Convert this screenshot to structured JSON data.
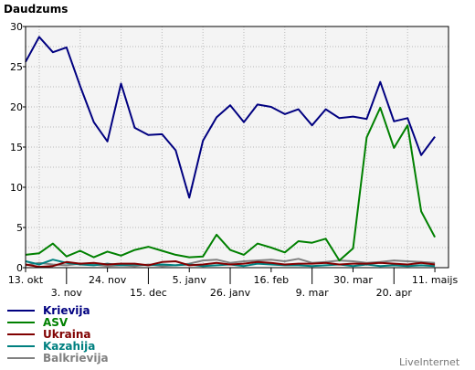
{
  "chart_data": {
    "type": "line",
    "ylabel": "Daudzums",
    "ylim": [
      0,
      30
    ],
    "yticks": [
      0,
      5,
      10,
      15,
      20,
      25,
      30
    ],
    "grid": true,
    "legend_position": "bottom-left",
    "x_count": 32,
    "xticks_row1": [
      {
        "label": "13. okt",
        "i": 0
      },
      {
        "label": "24. nov",
        "i": 6
      },
      {
        "label": "5. janv",
        "i": 12
      },
      {
        "label": "16. feb",
        "i": 18
      },
      {
        "label": "30. mar",
        "i": 24
      },
      {
        "label": "11. maijs",
        "i": 30
      }
    ],
    "xticks_row2": [
      {
        "label": "3. nov",
        "i": 3
      },
      {
        "label": "15. dec",
        "i": 9
      },
      {
        "label": "26. janv",
        "i": 15
      },
      {
        "label": "9. mar",
        "i": 21
      },
      {
        "label": "20. apr",
        "i": 27
      }
    ],
    "series": [
      {
        "name": "Krievija",
        "color": "#000080",
        "values": [
          25.6,
          28.7,
          26.8,
          27.4,
          22.6,
          18.1,
          15.7,
          22.9,
          17.4,
          16.5,
          16.6,
          14.6,
          8.7,
          15.8,
          18.7,
          20.2,
          18.1,
          20.3,
          20.0,
          19.1,
          19.7,
          17.7,
          19.7,
          18.6,
          18.8,
          18.5,
          23.1,
          18.2,
          18.6,
          14.0,
          16.3
        ]
      },
      {
        "name": "ASV",
        "color": "#008000",
        "values": [
          1.6,
          1.8,
          3.0,
          1.4,
          2.1,
          1.3,
          2.0,
          1.5,
          2.2,
          2.6,
          2.1,
          1.6,
          1.3,
          1.4,
          4.1,
          2.2,
          1.6,
          3.0,
          2.5,
          1.9,
          3.3,
          3.1,
          3.6,
          0.9,
          2.4,
          16.2,
          19.9,
          14.9,
          17.7,
          7.0,
          3.8
        ]
      },
      {
        "name": "Ukraina",
        "color": "#800000",
        "values": [
          0.4,
          0.1,
          0.2,
          0.7,
          0.5,
          0.6,
          0.4,
          0.5,
          0.5,
          0.3,
          0.7,
          0.8,
          0.3,
          0.4,
          0.6,
          0.4,
          0.5,
          0.7,
          0.6,
          0.4,
          0.5,
          0.5,
          0.6,
          0.4,
          0.5,
          0.5,
          0.6,
          0.5,
          0.4,
          0.6,
          0.4
        ]
      },
      {
        "name": "Kazahija",
        "color": "#008080",
        "values": [
          0.8,
          0.4,
          1.0,
          0.6,
          0.4,
          0.3,
          0.5,
          0.3,
          0.4,
          0.3,
          0.4,
          0.3,
          0.4,
          0.2,
          0.3,
          0.4,
          0.2,
          0.5,
          0.4,
          0.3,
          0.3,
          0.2,
          0.3,
          0.4,
          0.2,
          0.4,
          0.2,
          0.3,
          0.2,
          0.3,
          0.2
        ]
      },
      {
        "name": "Balkrievija",
        "color": "#808080",
        "values": [
          0.3,
          0.6,
          0.4,
          0.3,
          0.5,
          0.4,
          0.2,
          0.3,
          0.2,
          0.4,
          0.2,
          0.3,
          0.5,
          0.9,
          1.0,
          0.6,
          0.8,
          0.9,
          1.0,
          0.8,
          1.1,
          0.6,
          0.7,
          0.9,
          0.8,
          0.6,
          0.7,
          0.9,
          0.8,
          0.7,
          0.6
        ]
      }
    ]
  },
  "brand": "LiveInternet"
}
